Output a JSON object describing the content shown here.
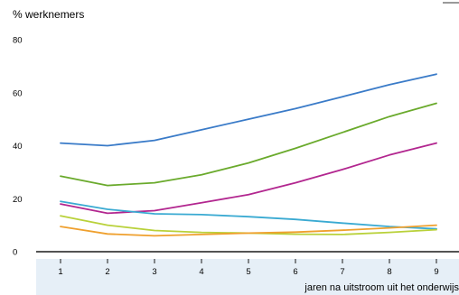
{
  "chart_data": {
    "type": "line",
    "ylabel": "% werknemers",
    "xlabel": "jaren na uitstroom uit het onderwijs",
    "x": [
      1,
      2,
      3,
      4,
      5,
      6,
      7,
      8,
      9
    ],
    "ylim": [
      0,
      80
    ],
    "yticks": [
      0,
      20,
      40,
      60,
      80
    ],
    "grid": false,
    "series": [
      {
        "color": "#3a7bc8",
        "values": [
          41,
          40,
          42,
          46,
          50,
          54,
          58.5,
          63,
          67
        ]
      },
      {
        "color": "#6aaa2c",
        "values": [
          28.5,
          25,
          26,
          29,
          33.5,
          39,
          45,
          51,
          56
        ]
      },
      {
        "color": "#b2268f",
        "values": [
          18,
          14.5,
          15.5,
          18.5,
          21.5,
          26,
          31,
          36.5,
          41
        ]
      },
      {
        "color": "#3aaad2",
        "values": [
          19,
          16,
          14.3,
          14,
          13.2,
          12.2,
          10.8,
          9.5,
          8.6
        ]
      },
      {
        "color": "#b9d13a",
        "values": [
          13.5,
          10,
          8,
          7.3,
          7,
          6.6,
          6.5,
          7.3,
          8.3
        ]
      },
      {
        "color": "#efa02e",
        "values": [
          9.5,
          6.7,
          6,
          6.5,
          7,
          7.4,
          8.1,
          9,
          10
        ]
      }
    ]
  }
}
